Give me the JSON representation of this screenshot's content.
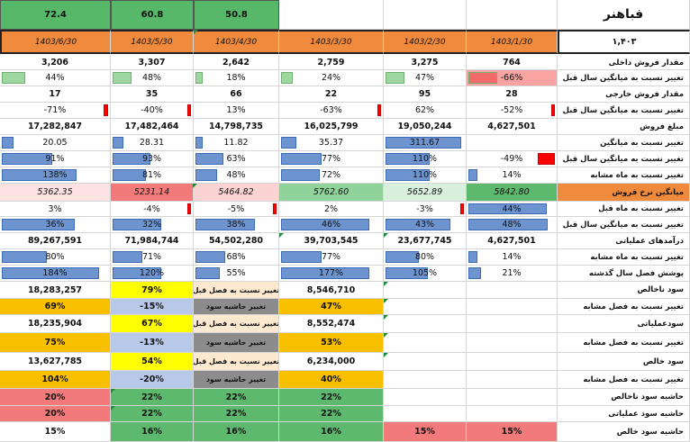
{
  "company": "فباهنر",
  "year": "۱,۴۰۳",
  "top_values": [
    "72.4",
    "60.8",
    "50.8"
  ],
  "periods": [
    "1403/6/30",
    "1403/5/30",
    "1403/4/30",
    "1403/3/30",
    "1403/2/30",
    "1403/1/30"
  ],
  "colors": {
    "header_orange": "#f08a3c",
    "top_green": "#58b86a",
    "yellow": "#ffff00",
    "orange": "#f9c000",
    "light_blue": "#b8c8e8",
    "grey": "#8c8c8c",
    "peach": "#fde9d0",
    "red_cell": "#f27a7a",
    "green_cell": "#5cb96d",
    "bar_blue": "#6e94cf",
    "bar_red": "#ff0000"
  },
  "rows": [
    {
      "label": "مقدار فروش داخلی",
      "cells": [
        "3,206",
        "3,307",
        "2,642",
        "2,759",
        "3,275",
        "764"
      ]
    },
    {
      "label": "تغییر نسبت به میانگین سال قبل",
      "cells": [
        "44%",
        "48%",
        "18%",
        "24%",
        "47%",
        "-66%"
      ]
    },
    {
      "label": "مقدار فروش خارجی",
      "cells": [
        "17",
        "35",
        "66",
        "22",
        "95",
        "28"
      ]
    },
    {
      "label": "تغییر نسبت به میانگین سال قبل",
      "cells": [
        "-71%",
        "-40%",
        "13%",
        "-63%",
        "62%",
        "-52%"
      ]
    },
    {
      "label": "مبلغ فروش",
      "cells": [
        "17,282,847",
        "17,482,464",
        "14,798,735",
        "16,025,799",
        "19,050,244",
        "4,627,501"
      ]
    },
    {
      "label": "تغییر نسبت به میانگین",
      "cells": [
        "20.05",
        "28.31",
        "11.82",
        "35.37",
        "311.67",
        ""
      ]
    },
    {
      "label": "تغییر نسبت به میانگین سال قبل",
      "cells": [
        "91%",
        "93%",
        "63%",
        "77%",
        "110%",
        "-49%"
      ]
    },
    {
      "label": "تغییر نسبت به ماه مشابه",
      "cells": [
        "138%",
        "81%",
        "48%",
        "72%",
        "110%",
        "14%"
      ]
    },
    {
      "label": "میانگین نرخ فروش",
      "cells": [
        "5362.35",
        "5231.14",
        "5464.82",
        "5762.60",
        "5652.89",
        "5842.80"
      ]
    },
    {
      "label": "تغییر نسبت به ماه قبل",
      "cells": [
        "3%",
        "-4%",
        "-5%",
        "2%",
        "-3%",
        "44%"
      ]
    },
    {
      "label": "تغییر نسبت به میانگین سال قبل",
      "cells": [
        "36%",
        "32%",
        "38%",
        "46%",
        "43%",
        "48%"
      ]
    },
    {
      "label": "درآمدهای عملیاتی",
      "cells": [
        "89,267,591",
        "71,984,744",
        "54,502,280",
        "39,703,545",
        "23,677,745",
        "4,627,501"
      ]
    },
    {
      "label": "تغییر نسبت به ماه مشابه",
      "cells": [
        "80%",
        "71%",
        "68%",
        "77%",
        "80%",
        "14%"
      ]
    },
    {
      "label": "پوشش فصل سال گذشته",
      "cells": [
        "184%",
        "120%",
        "55%",
        "177%",
        "105%",
        "21%"
      ]
    },
    {
      "label": "سود ناخالص",
      "cells": [
        "18,283,257",
        "79%",
        "تغییر نسبت به فصل قبل",
        "8,546,710",
        "",
        ""
      ]
    },
    {
      "label": "تغییر نسبت به فصل مشابه",
      "cells": [
        "69%",
        "-15%",
        "تغییر حاشیه سود",
        "47%",
        "",
        ""
      ]
    },
    {
      "label": "سودعملیاتی",
      "cells": [
        "18,235,904",
        "67%",
        "تغییر نسبت به فصل قبل",
        "8,552,474",
        "",
        ""
      ]
    },
    {
      "label": "تغییر نسبت به فصل مشابه",
      "cells": [
        "75%",
        "-13%",
        "تغییر حاشیه سود",
        "53%",
        "",
        ""
      ]
    },
    {
      "label": "سود خالص",
      "cells": [
        "13,627,785",
        "54%",
        "تغییر نسبت به فصل قبل",
        "6,234,000",
        "",
        ""
      ]
    },
    {
      "label": "تغییر نسبت به فصل مشابه",
      "cells": [
        "104%",
        "-20%",
        "تغییر حاشیه سود",
        "40%",
        "",
        ""
      ]
    },
    {
      "label": "حاشیه سود ناخالص",
      "cells": [
        "20%",
        "22%",
        "22%",
        "22%",
        "",
        ""
      ]
    },
    {
      "label": "حاشیه سود عملیاتی",
      "cells": [
        "20%",
        "22%",
        "22%",
        "22%",
        "",
        ""
      ]
    },
    {
      "label": "حاشیه سود خالص",
      "cells": [
        "15%",
        "16%",
        "16%",
        "16%",
        "15%",
        "15%"
      ]
    }
  ]
}
